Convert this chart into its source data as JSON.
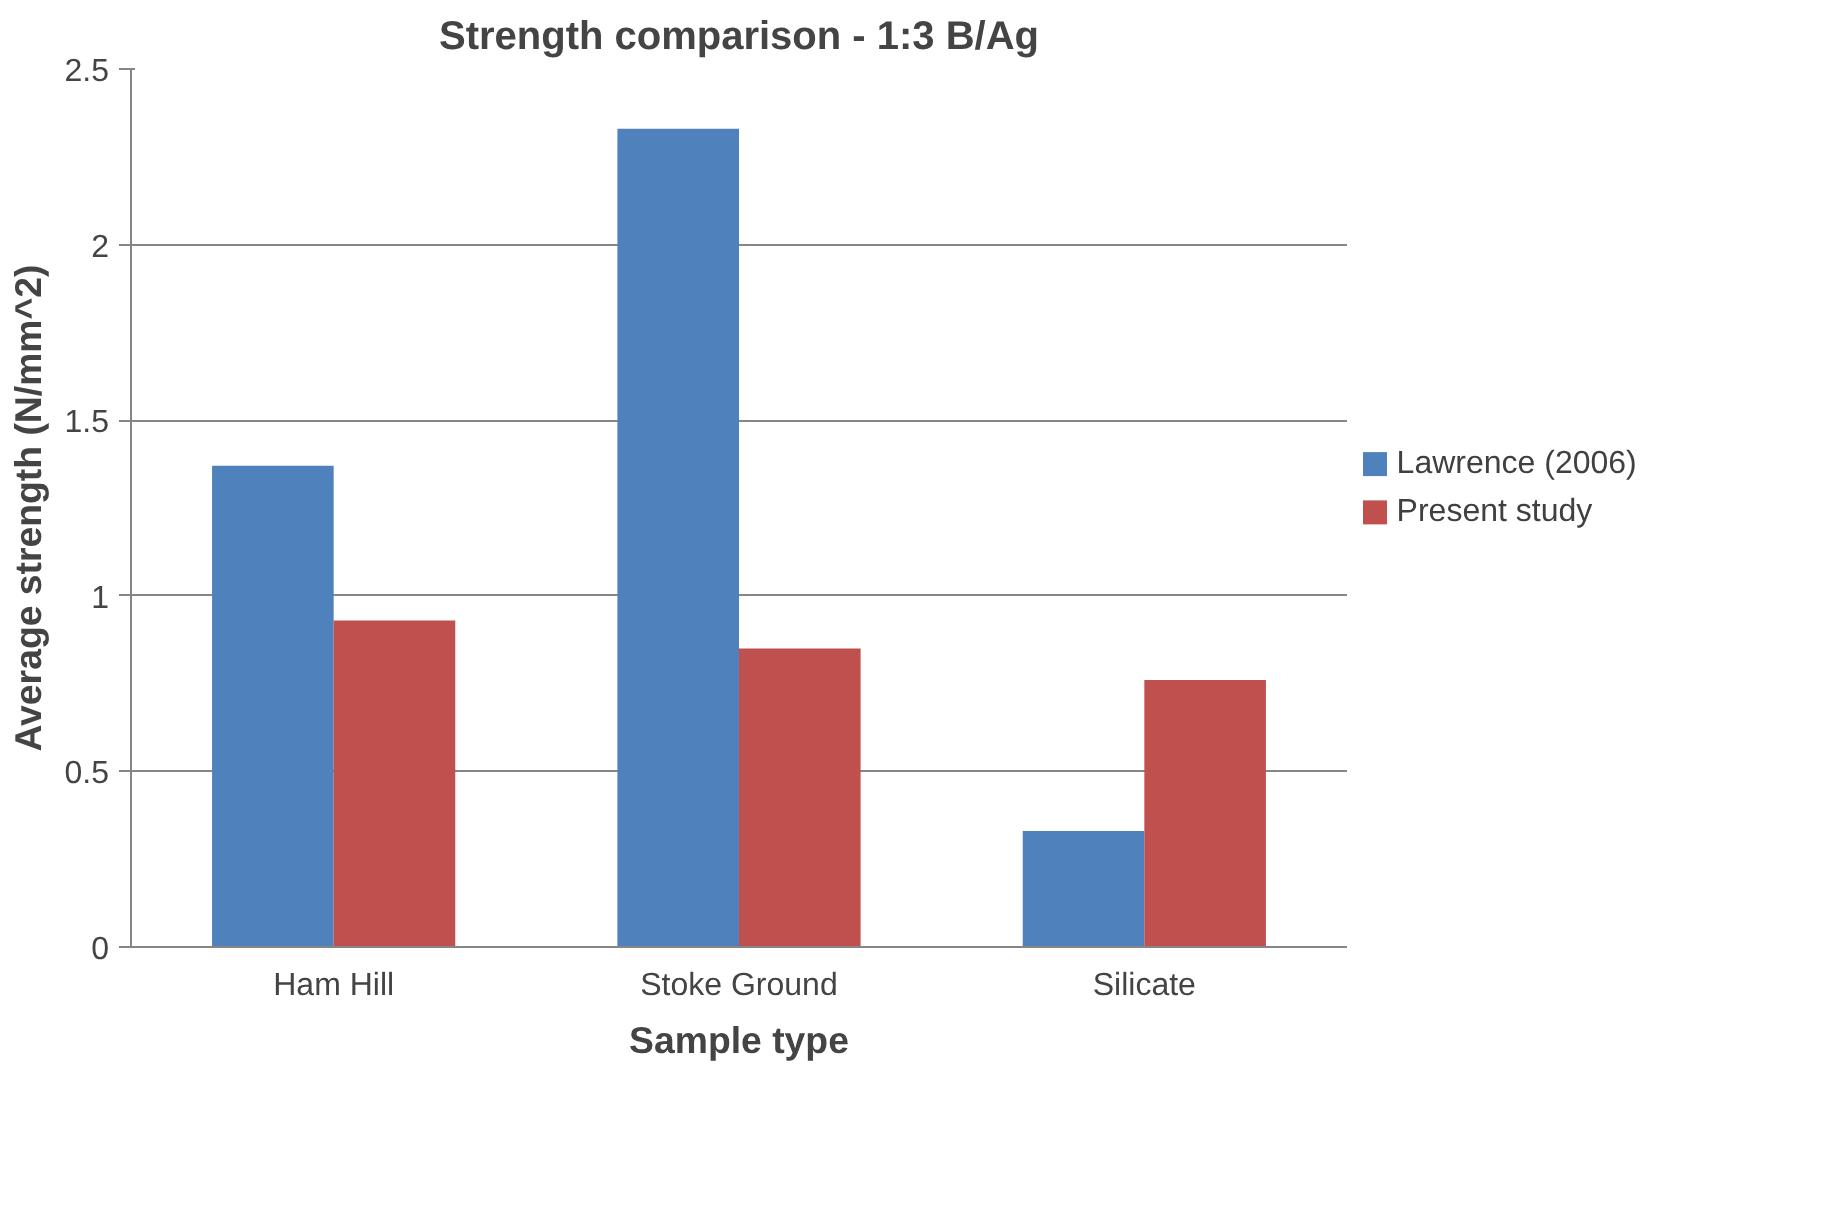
{
  "chart_data": {
    "type": "bar",
    "title": "Strength comparison - 1:3 B/Ag",
    "xlabel": "Sample type",
    "ylabel": "Average strength (N/mm^2)",
    "categories": [
      "Ham Hill",
      "Stoke Ground",
      "Silicate"
    ],
    "series": [
      {
        "name": "Lawrence (2006)",
        "color": "#4f81bd",
        "values": [
          1.37,
          2.33,
          0.33
        ]
      },
      {
        "name": "Present study",
        "color": "#c0504d",
        "values": [
          0.93,
          0.85,
          0.76
        ]
      }
    ],
    "ylim": [
      0,
      2.5
    ],
    "yticks": [
      0,
      0.5,
      1,
      1.5,
      2,
      2.5
    ],
    "grid": "y",
    "legend": "right"
  }
}
